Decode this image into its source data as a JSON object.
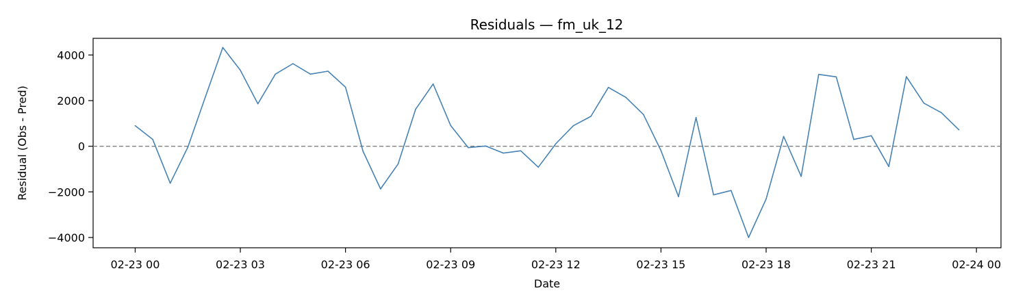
{
  "chart_data": {
    "type": "line",
    "title": "Residuals — fm_uk_12",
    "xlabel": "Date",
    "ylabel": "Residual (Obs - Pred)",
    "x_tick_labels": [
      "02-23 00",
      "02-23 03",
      "02-23 06",
      "02-23 09",
      "02-23 12",
      "02-23 15",
      "02-23 18",
      "02-23 21",
      "02-24 00"
    ],
    "y_ticks": [
      -4000,
      -2000,
      0,
      2000,
      4000
    ],
    "ylim": [
      -4450,
      4730
    ],
    "xlim": [
      "2024-02-22 22:48",
      "2024-02-24 00:42"
    ],
    "reference_line": {
      "y": 0,
      "style": "dashed",
      "color": "#808080"
    },
    "grid": false,
    "series": [
      {
        "color": "#4682b4",
        "points": [
          [
            "2024-02-23 00:00",
            900
          ],
          [
            "2024-02-23 00:30",
            300
          ],
          [
            "2024-02-23 01:00",
            -1620
          ],
          [
            "2024-02-23 01:30",
            -50
          ],
          [
            "2024-02-23 02:00",
            2150
          ],
          [
            "2024-02-23 02:30",
            4330
          ],
          [
            "2024-02-23 03:00",
            3330
          ],
          [
            "2024-02-23 03:30",
            1860
          ],
          [
            "2024-02-23 04:00",
            3160
          ],
          [
            "2024-02-23 04:30",
            3620
          ],
          [
            "2024-02-23 05:00",
            3160
          ],
          [
            "2024-02-23 05:30",
            3290
          ],
          [
            "2024-02-23 06:00",
            2590
          ],
          [
            "2024-02-23 06:30",
            -220
          ],
          [
            "2024-02-23 07:00",
            -1870
          ],
          [
            "2024-02-23 07:30",
            -780
          ],
          [
            "2024-02-23 08:00",
            1620
          ],
          [
            "2024-02-23 08:30",
            2730
          ],
          [
            "2024-02-23 09:00",
            910
          ],
          [
            "2024-02-23 09:30",
            -60
          ],
          [
            "2024-02-23 10:00",
            10
          ],
          [
            "2024-02-23 10:30",
            -300
          ],
          [
            "2024-02-23 11:00",
            -200
          ],
          [
            "2024-02-23 11:30",
            -920
          ],
          [
            "2024-02-23 12:00",
            110
          ],
          [
            "2024-02-23 12:30",
            900
          ],
          [
            "2024-02-23 13:00",
            1310
          ],
          [
            "2024-02-23 13:30",
            2580
          ],
          [
            "2024-02-23 14:00",
            2140
          ],
          [
            "2024-02-23 14:30",
            1390
          ],
          [
            "2024-02-23 15:00",
            -190
          ],
          [
            "2024-02-23 15:30",
            -2210
          ],
          [
            "2024-02-23 16:00",
            1260
          ],
          [
            "2024-02-23 16:30",
            -2130
          ],
          [
            "2024-02-23 17:00",
            -1940
          ],
          [
            "2024-02-23 17:30",
            -4000
          ],
          [
            "2024-02-23 18:00",
            -2310
          ],
          [
            "2024-02-23 18:30",
            430
          ],
          [
            "2024-02-23 19:00",
            -1320
          ],
          [
            "2024-02-23 19:30",
            3150
          ],
          [
            "2024-02-23 20:00",
            3040
          ],
          [
            "2024-02-23 20:30",
            300
          ],
          [
            "2024-02-23 21:00",
            460
          ],
          [
            "2024-02-23 21:30",
            -890
          ],
          [
            "2024-02-23 22:00",
            3050
          ],
          [
            "2024-02-23 22:30",
            1890
          ],
          [
            "2024-02-23 23:00",
            1470
          ],
          [
            "2024-02-23 23:30",
            720
          ]
        ]
      }
    ]
  }
}
